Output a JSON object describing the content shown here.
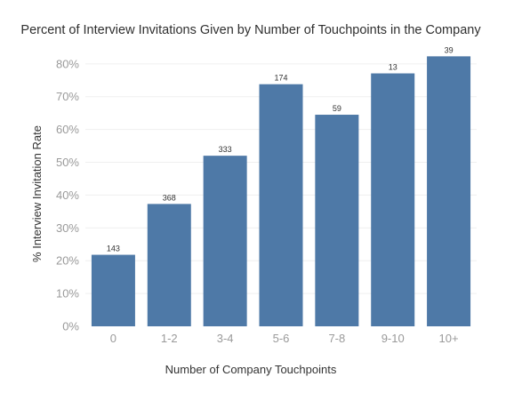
{
  "chart_data": {
    "type": "bar",
    "title": "Percent of Interview Invitations Given by Number of Touchpoints in the Company",
    "xlabel": "Number of Company Touchpoints",
    "ylabel": "% Interview Invitation Rate",
    "categories": [
      "0",
      "1-2",
      "3-4",
      "5-6",
      "7-8",
      "9-10",
      "10+"
    ],
    "values": [
      21.8,
      37.3,
      52.0,
      73.8,
      64.5,
      77.1,
      82.3
    ],
    "data_labels": [
      "143",
      "368",
      "333",
      "174",
      "59",
      "13",
      "39"
    ],
    "yticks": [
      0,
      10,
      20,
      30,
      40,
      50,
      60,
      70,
      80
    ],
    "ytick_labels": [
      "0%",
      "10%",
      "20%",
      "30%",
      "40%",
      "50%",
      "60%",
      "70%",
      "80%"
    ],
    "ylim": [
      0,
      85
    ],
    "grid": true,
    "legend": "none",
    "colors": {
      "bar": "#4e79a7",
      "grid": "#efefef"
    }
  }
}
